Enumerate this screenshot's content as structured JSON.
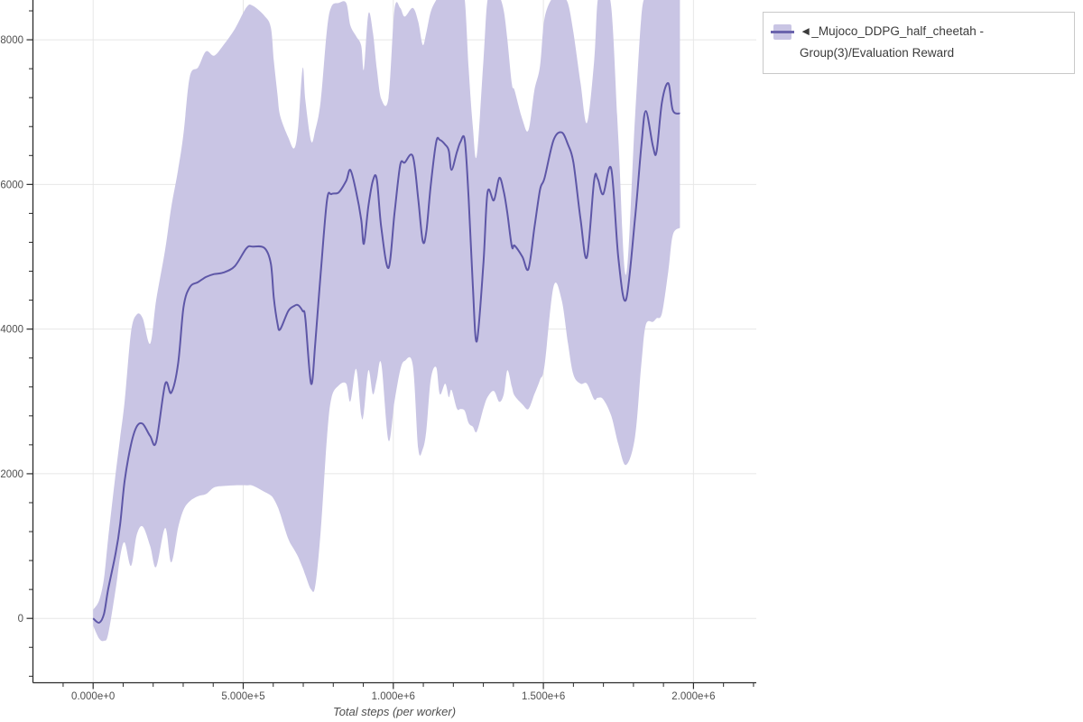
{
  "style": {
    "background": "#ffffff",
    "band_color": "#c9c5e4",
    "line_color": "#5e57a7",
    "grid_color": "#e7e7e7",
    "spine_color": "#2b2b2b",
    "tick_label_color": "#4f4f4f",
    "legend_text_color": "#3b3b3b",
    "legend_border_color": "#c9c9c9",
    "legend_swatch_line_color": "#6b64ad"
  },
  "legend": {
    "label": "◄_Mujoco_DDPG_half_cheetah - Group(3)/Evaluation Reward"
  },
  "axes": {
    "x": {
      "title": "Total steps (per worker)",
      "ticks": [
        {
          "v": 0,
          "label": "0.000e+0"
        },
        {
          "v": 500000,
          "label": "5.000e+5"
        },
        {
          "v": 1000000,
          "label": "1.000e+6"
        },
        {
          "v": 1500000,
          "label": "1.500e+6"
        },
        {
          "v": 2000000,
          "label": "2.000e+6"
        }
      ],
      "minor_interval": 100000,
      "minor_range": [
        -100000,
        2200000
      ]
    },
    "y": {
      "ticks": [
        {
          "v": 0,
          "label": "0"
        },
        {
          "v": 2000,
          "label": "2000"
        },
        {
          "v": 4000,
          "label": "4000"
        },
        {
          "v": 6000,
          "label": "6000"
        },
        {
          "v": 8000,
          "label": "8000"
        }
      ],
      "minor_interval": 400,
      "minor_range": [
        -800,
        8400
      ]
    }
  },
  "chart_data": {
    "type": "line",
    "title": "",
    "xlabel": "Total steps (per worker)",
    "ylabel": "",
    "grid": true,
    "legend_position": "top-right",
    "x_unit": "million steps",
    "xlim_visible_million_steps": [
      -0.195,
      2.21
    ],
    "ylim_visible": [
      -900,
      8550
    ],
    "series": [
      {
        "name": "◄_Mujoco_DDPG_half_cheetah - Group(3)/Evaluation Reward",
        "color": "#5e57a7",
        "band_color": "#c9c5e4",
        "points_format": [
          "x_million_steps",
          "band_lower",
          "mean",
          "band_upper"
        ],
        "points": [
          [
            0.0,
            -100,
            0,
            120
          ],
          [
            0.02,
            -280,
            -60,
            250
          ],
          [
            0.036,
            -310,
            60,
            550
          ],
          [
            0.05,
            -220,
            400,
            1100
          ],
          [
            0.075,
            400,
            900,
            2000
          ],
          [
            0.09,
            850,
            1300,
            2500
          ],
          [
            0.105,
            1050,
            1900,
            3000
          ],
          [
            0.126,
            725,
            2400,
            3950
          ],
          [
            0.145,
            1150,
            2650,
            4200
          ],
          [
            0.165,
            1270,
            2690,
            4150
          ],
          [
            0.19,
            1000,
            2520,
            3800
          ],
          [
            0.21,
            710,
            2440,
            4400
          ],
          [
            0.24,
            1250,
            3240,
            5100
          ],
          [
            0.26,
            775,
            3120,
            5680
          ],
          [
            0.283,
            1250,
            3520,
            6200
          ],
          [
            0.301,
            1500,
            4300,
            6700
          ],
          [
            0.322,
            1620,
            4580,
            7490
          ],
          [
            0.35,
            1690,
            4650,
            7620
          ],
          [
            0.376,
            1720,
            4720,
            7840
          ],
          [
            0.403,
            1810,
            4760,
            7780
          ],
          [
            0.433,
            1830,
            4780,
            7920
          ],
          [
            0.472,
            1840,
            4870,
            8150
          ],
          [
            0.511,
            1840,
            5120,
            8450
          ],
          [
            0.532,
            1835,
            5140,
            8470
          ],
          [
            0.571,
            1750,
            5120,
            8330
          ],
          [
            0.592,
            1700,
            4905,
            8170
          ],
          [
            0.602,
            1650,
            4430,
            7710
          ],
          [
            0.614,
            1550,
            4080,
            7250
          ],
          [
            0.623,
            1450,
            3995,
            6950
          ],
          [
            0.65,
            1100,
            4250,
            6650
          ],
          [
            0.67,
            950,
            4320,
            6500
          ],
          [
            0.683,
            850,
            4330,
            6800
          ],
          [
            0.698,
            700,
            4250,
            7610
          ],
          [
            0.707,
            600,
            4150,
            7170
          ],
          [
            0.726,
            400,
            3245,
            6600
          ],
          [
            0.74,
            450,
            3800,
            6750
          ],
          [
            0.758,
            1200,
            4765,
            7150
          ],
          [
            0.779,
            2500,
            5780,
            8140
          ],
          [
            0.794,
            3050,
            5867,
            8460
          ],
          [
            0.818,
            3220,
            5890,
            8510
          ],
          [
            0.843,
            3245,
            6050,
            8510
          ],
          [
            0.857,
            3000,
            6200,
            8200
          ],
          [
            0.876,
            3450,
            5900,
            8050
          ],
          [
            0.893,
            2810,
            5515,
            7920
          ],
          [
            0.902,
            2850,
            5180,
            7590
          ],
          [
            0.917,
            3430,
            5700,
            8360
          ],
          [
            0.932,
            3100,
            6053,
            8100
          ],
          [
            0.945,
            3300,
            6070,
            7600
          ],
          [
            0.96,
            3520,
            5400,
            7180
          ],
          [
            0.984,
            2460,
            4845,
            7200
          ],
          [
            1.004,
            3000,
            5600,
            8420
          ],
          [
            1.023,
            3430,
            6265,
            8440
          ],
          [
            1.038,
            3560,
            6302,
            8320
          ],
          [
            1.065,
            3500,
            6390,
            8440
          ],
          [
            1.083,
            2350,
            5800,
            8250
          ],
          [
            1.098,
            2340,
            5217,
            7930
          ],
          [
            1.11,
            2600,
            5350,
            8100
          ],
          [
            1.125,
            3310,
            6000,
            8390
          ],
          [
            1.143,
            3470,
            6590,
            8550
          ],
          [
            1.155,
            3100,
            6615,
            8600
          ],
          [
            1.173,
            3245,
            6550,
            8600
          ],
          [
            1.185,
            3060,
            6465,
            8600
          ],
          [
            1.194,
            3160,
            6200,
            8550
          ],
          [
            1.212,
            2900,
            6450,
            8600
          ],
          [
            1.224,
            2895,
            6590,
            8600
          ],
          [
            1.238,
            2870,
            6610,
            8550
          ],
          [
            1.251,
            2700,
            5800,
            7600
          ],
          [
            1.265,
            2650,
            4600,
            6800
          ],
          [
            1.278,
            2583,
            3830,
            6400
          ],
          [
            1.3,
            2900,
            4900,
            7700
          ],
          [
            1.314,
            3060,
            5890,
            8550
          ],
          [
            1.335,
            3145,
            5780,
            8600
          ],
          [
            1.353,
            2995,
            6090,
            8600
          ],
          [
            1.368,
            3100,
            5900,
            8400
          ],
          [
            1.38,
            3430,
            5600,
            8000
          ],
          [
            1.395,
            3200,
            5140,
            7390
          ],
          [
            1.404,
            3080,
            5155,
            7300
          ],
          [
            1.43,
            2960,
            5000,
            6900
          ],
          [
            1.45,
            2895,
            4830,
            6750
          ],
          [
            1.47,
            3100,
            5400,
            7300
          ],
          [
            1.489,
            3300,
            5930,
            7640
          ],
          [
            1.504,
            3500,
            6090,
            8300
          ],
          [
            1.534,
            4590,
            6615,
            8600
          ],
          [
            1.561,
            4400,
            6720,
            8600
          ],
          [
            1.582,
            3800,
            6550,
            8500
          ],
          [
            1.6,
            3370,
            6302,
            8100
          ],
          [
            1.624,
            3245,
            5515,
            7400
          ],
          [
            1.645,
            3245,
            4992,
            6850
          ],
          [
            1.669,
            3030,
            6053,
            7700
          ],
          [
            1.681,
            3050,
            6077,
            8550
          ],
          [
            1.699,
            3030,
            5865,
            8600
          ],
          [
            1.726,
            2800,
            6215,
            8450
          ],
          [
            1.75,
            2400,
            4967,
            6600
          ],
          [
            1.775,
            2121,
            4405,
            4750
          ],
          [
            1.805,
            2500,
            5515,
            6900
          ],
          [
            1.826,
            3500,
            6515,
            8300
          ],
          [
            1.841,
            4056,
            7014,
            8600
          ],
          [
            1.865,
            4100,
            6527,
            8600
          ],
          [
            1.877,
            4150,
            6452,
            8600
          ],
          [
            1.895,
            4220,
            7139,
            8600
          ],
          [
            1.916,
            4800,
            7400,
            8600
          ],
          [
            1.931,
            5300,
            7026,
            8600
          ],
          [
            1.955,
            5400,
            6980,
            8550
          ]
        ]
      }
    ]
  }
}
